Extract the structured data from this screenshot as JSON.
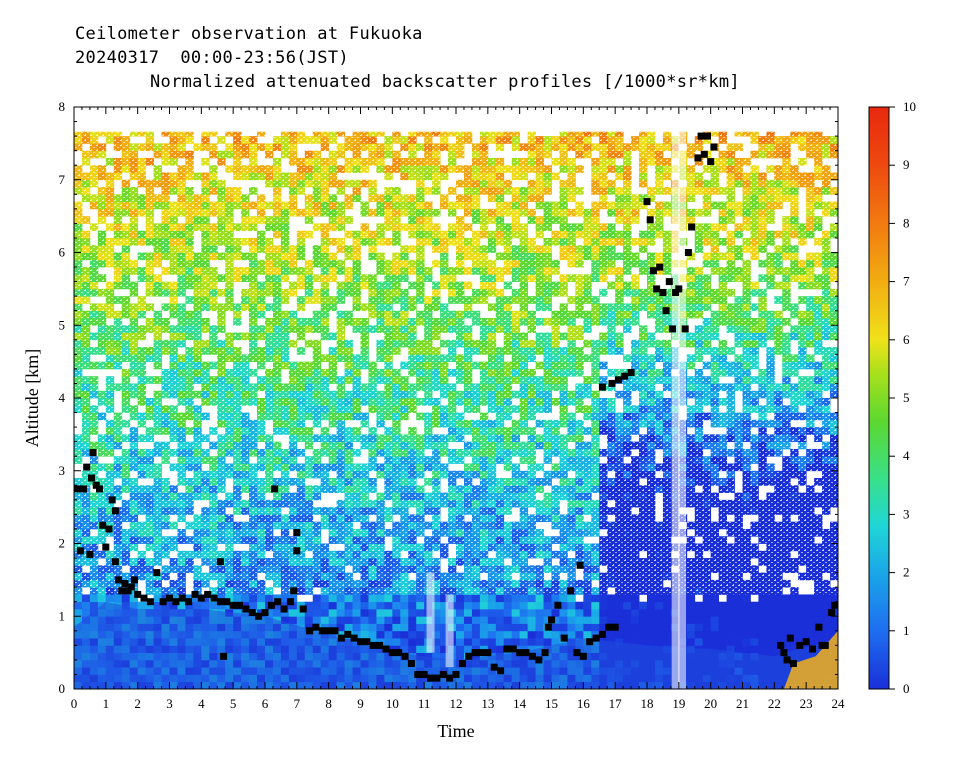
{
  "header": {
    "line1": "Ceilometer observation at Fukuoka",
    "line2": "20240317  00:00-23:56(JST)",
    "title": "Normalized attenuated backscatter profiles [/1000*sr*km]"
  },
  "chart_data": {
    "type": "heatmap",
    "title": "Normalized attenuated backscatter profiles [/1000*sr*km]",
    "xlabel": "Time",
    "ylabel": "Altitude [km]",
    "xlim": [
      0,
      24
    ],
    "ylim": [
      0,
      8
    ],
    "x_ticks": [
      "0",
      "1",
      "2",
      "3",
      "4",
      "5",
      "6",
      "7",
      "8",
      "9",
      "10",
      "11",
      "12",
      "13",
      "14",
      "15",
      "16",
      "17",
      "18",
      "19",
      "20",
      "21",
      "22",
      "23",
      "24"
    ],
    "y_ticks": [
      "0",
      "1",
      "2",
      "3",
      "4",
      "5",
      "6",
      "7",
      "8"
    ],
    "data_top_km": 7.66,
    "colorbar": {
      "range": [
        0,
        10
      ],
      "ticks": [
        "0",
        "1",
        "2",
        "3",
        "4",
        "5",
        "6",
        "7",
        "8",
        "9",
        "10"
      ]
    },
    "cloud_base_points": [
      [
        0.1,
        2.75
      ],
      [
        0.2,
        1.9
      ],
      [
        0.3,
        2.75
      ],
      [
        0.4,
        3.05
      ],
      [
        0.5,
        1.85
      ],
      [
        0.55,
        2.9
      ],
      [
        0.6,
        3.25
      ],
      [
        0.7,
        2.8
      ],
      [
        0.8,
        2.75
      ],
      [
        0.9,
        2.25
      ],
      [
        1.0,
        1.95
      ],
      [
        1.1,
        2.2
      ],
      [
        1.2,
        2.6
      ],
      [
        1.3,
        2.45
      ],
      [
        1.3,
        1.75
      ],
      [
        1.4,
        1.5
      ],
      [
        1.5,
        1.35
      ],
      [
        1.6,
        1.45
      ],
      [
        1.7,
        1.35
      ],
      [
        1.8,
        1.4
      ],
      [
        1.9,
        1.5
      ],
      [
        2.0,
        1.3
      ],
      [
        2.2,
        1.25
      ],
      [
        2.4,
        1.2
      ],
      [
        2.6,
        1.6
      ],
      [
        2.8,
        1.2
      ],
      [
        3.0,
        1.25
      ],
      [
        3.2,
        1.2
      ],
      [
        3.4,
        1.25
      ],
      [
        3.6,
        1.2
      ],
      [
        3.8,
        1.3
      ],
      [
        4.0,
        1.25
      ],
      [
        4.2,
        1.3
      ],
      [
        4.4,
        1.25
      ],
      [
        4.6,
        1.2
      ],
      [
        4.6,
        1.75
      ],
      [
        4.7,
        0.45
      ],
      [
        4.8,
        1.2
      ],
      [
        5.0,
        1.15
      ],
      [
        5.2,
        1.15
      ],
      [
        5.4,
        1.1
      ],
      [
        5.6,
        1.05
      ],
      [
        5.8,
        1.0
      ],
      [
        6.0,
        1.05
      ],
      [
        6.2,
        1.15
      ],
      [
        6.3,
        2.75
      ],
      [
        6.4,
        1.2
      ],
      [
        6.6,
        1.1
      ],
      [
        6.8,
        1.2
      ],
      [
        6.9,
        1.35
      ],
      [
        7.0,
        2.15
      ],
      [
        7.0,
        1.9
      ],
      [
        7.2,
        1.1
      ],
      [
        7.4,
        0.8
      ],
      [
        7.6,
        0.85
      ],
      [
        7.8,
        0.8
      ],
      [
        8.0,
        0.8
      ],
      [
        8.2,
        0.8
      ],
      [
        8.4,
        0.7
      ],
      [
        8.6,
        0.75
      ],
      [
        8.8,
        0.7
      ],
      [
        9.0,
        0.65
      ],
      [
        9.2,
        0.65
      ],
      [
        9.4,
        0.6
      ],
      [
        9.6,
        0.6
      ],
      [
        9.8,
        0.55
      ],
      [
        10.0,
        0.5
      ],
      [
        10.2,
        0.5
      ],
      [
        10.4,
        0.45
      ],
      [
        10.6,
        0.35
      ],
      [
        10.8,
        0.2
      ],
      [
        11.0,
        0.2
      ],
      [
        11.2,
        0.15
      ],
      [
        11.4,
        0.15
      ],
      [
        11.6,
        0.2
      ],
      [
        11.8,
        0.15
      ],
      [
        12.0,
        0.2
      ],
      [
        12.2,
        0.35
      ],
      [
        12.4,
        0.45
      ],
      [
        12.6,
        0.5
      ],
      [
        12.8,
        0.5
      ],
      [
        13.0,
        0.5
      ],
      [
        13.2,
        0.3
      ],
      [
        13.4,
        0.25
      ],
      [
        13.6,
        0.55
      ],
      [
        13.8,
        0.55
      ],
      [
        14.0,
        0.5
      ],
      [
        14.2,
        0.5
      ],
      [
        14.4,
        0.45
      ],
      [
        14.6,
        0.4
      ],
      [
        14.8,
        0.5
      ],
      [
        14.9,
        0.85
      ],
      [
        15.0,
        0.95
      ],
      [
        15.2,
        1.15
      ],
      [
        15.4,
        0.7
      ],
      [
        15.6,
        1.35
      ],
      [
        15.8,
        0.5
      ],
      [
        15.9,
        1.7
      ],
      [
        16.0,
        0.45
      ],
      [
        16.2,
        0.65
      ],
      [
        16.4,
        0.7
      ],
      [
        16.6,
        0.75
      ],
      [
        16.8,
        0.85
      ],
      [
        17.0,
        0.85
      ],
      [
        16.6,
        4.15
      ],
      [
        16.9,
        4.2
      ],
      [
        17.1,
        4.25
      ],
      [
        17.3,
        4.3
      ],
      [
        17.5,
        4.35
      ],
      [
        18.0,
        6.7
      ],
      [
        18.1,
        6.45
      ],
      [
        18.2,
        5.75
      ],
      [
        18.3,
        5.5
      ],
      [
        18.4,
        5.8
      ],
      [
        18.5,
        5.45
      ],
      [
        18.6,
        5.2
      ],
      [
        18.7,
        5.6
      ],
      [
        18.8,
        4.95
      ],
      [
        18.9,
        5.45
      ],
      [
        19.0,
        5.5
      ],
      [
        19.2,
        4.95
      ],
      [
        19.3,
        6.0
      ],
      [
        19.4,
        6.35
      ],
      [
        19.6,
        7.3
      ],
      [
        19.7,
        7.6
      ],
      [
        19.8,
        7.35
      ],
      [
        19.9,
        7.6
      ],
      [
        20.0,
        7.25
      ],
      [
        20.1,
        7.45
      ],
      [
        22.2,
        0.6
      ],
      [
        22.3,
        0.5
      ],
      [
        22.4,
        0.4
      ],
      [
        22.5,
        0.7
      ],
      [
        22.6,
        0.35
      ],
      [
        22.8,
        0.6
      ],
      [
        23.0,
        0.65
      ],
      [
        23.2,
        0.55
      ],
      [
        23.4,
        0.85
      ],
      [
        23.5,
        0.6
      ],
      [
        23.6,
        0.6
      ],
      [
        23.8,
        1.05
      ],
      [
        23.9,
        1.15
      ]
    ]
  }
}
